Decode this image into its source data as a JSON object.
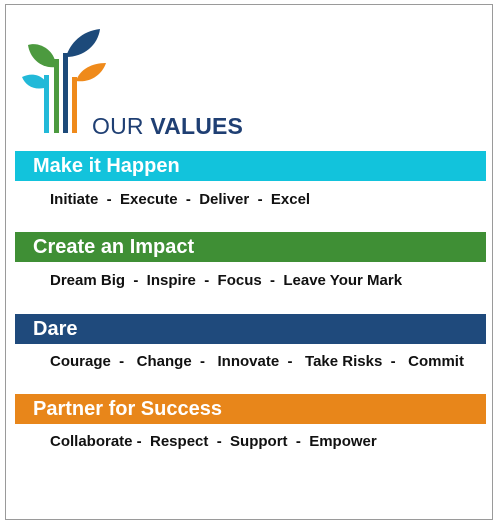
{
  "heading": {
    "prefix": "OUR ",
    "main": "VALUES"
  },
  "colors": {
    "cyan": "#12c3dc",
    "green": "#3f8f35",
    "navy": "#1f4a7c",
    "orange": "#e8861a",
    "logo_navy": "#1d4a7a",
    "logo_green": "#4c9a3f",
    "logo_orange": "#ef8a1b",
    "logo_cyan": "#22b9d8"
  },
  "values": [
    {
      "title": "Make it Happen",
      "items": "Initiate  -  Execute  -  Deliver  -  Excel"
    },
    {
      "title": "Create an Impact",
      "items": "Dream Big  -  Inspire  -  Focus  -  Leave Your Mark"
    },
    {
      "title": "Dare",
      "items": "Courage  -   Change  -   Innovate  -   Take Risks  -   Commit"
    },
    {
      "title": "Partner for Success",
      "items": "Collaborate -  Respect  -  Support  -  Empower"
    }
  ]
}
